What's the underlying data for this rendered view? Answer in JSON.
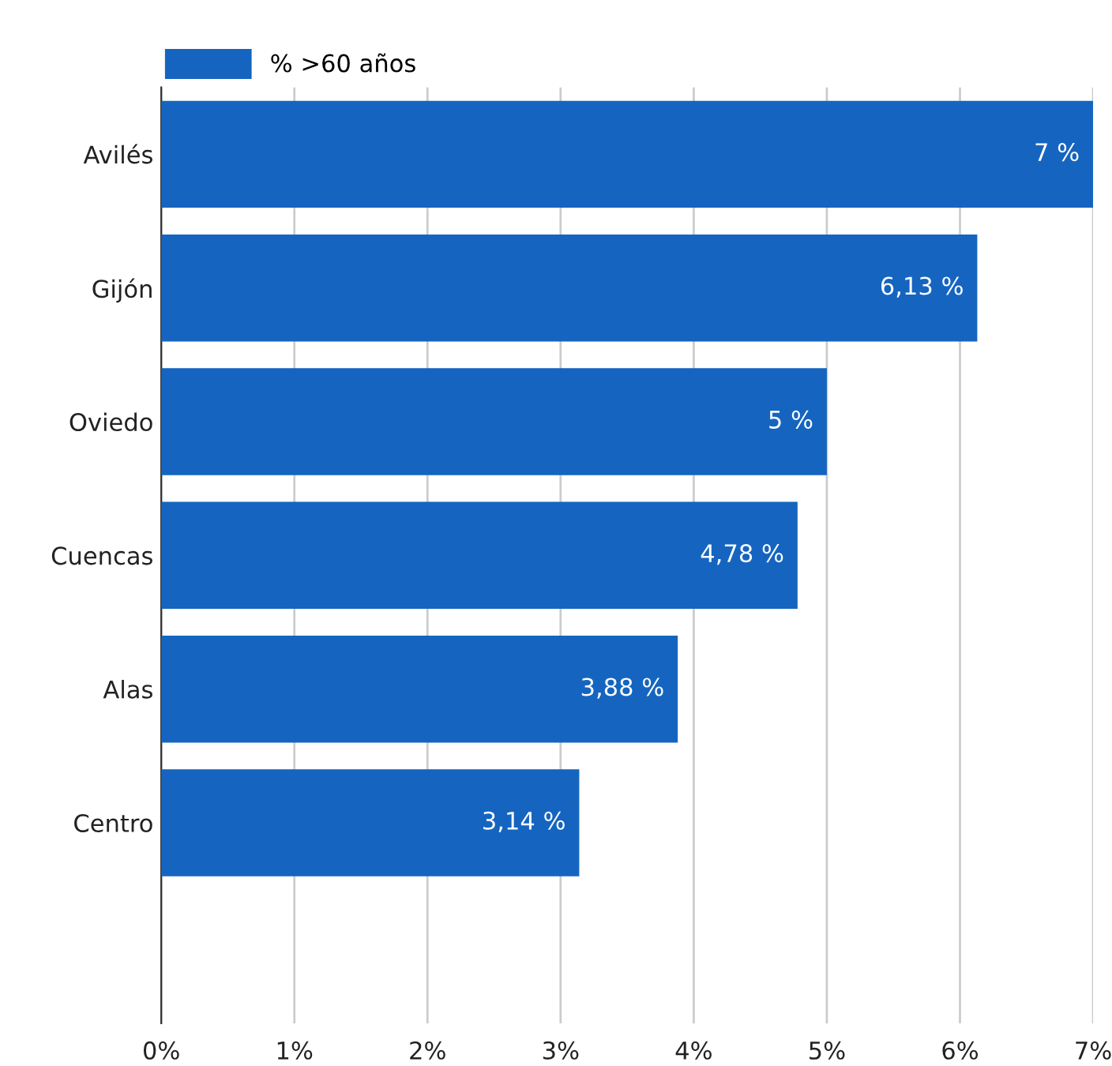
{
  "chart_data": {
    "type": "bar",
    "orientation": "horizontal",
    "categories": [
      "Avilés",
      "Gijón",
      "Oviedo",
      "Cuencas",
      "Alas",
      "Centro",
      null
    ],
    "series": [
      {
        "name": "% >60 años",
        "color": "#1565c0",
        "values": [
          7,
          6.13,
          5,
          4.78,
          3.88,
          3.14,
          null
        ],
        "value_labels": [
          "7 %",
          "6,13 %",
          "5 %",
          "4,78 %",
          "3,88 %",
          "3,14 %",
          null
        ]
      }
    ],
    "xlim": [
      0,
      7
    ],
    "xticks": [
      {
        "value": 0,
        "label": "0%"
      },
      {
        "value": 1,
        "label": "1%"
      },
      {
        "value": 2,
        "label": "2%"
      },
      {
        "value": 3,
        "label": "3%"
      },
      {
        "value": 4,
        "label": "4%"
      },
      {
        "value": 5,
        "label": "5%"
      },
      {
        "value": 6,
        "label": "6%"
      },
      {
        "value": 7,
        "label": "7%"
      }
    ],
    "grid": "x",
    "legend": "top left"
  }
}
